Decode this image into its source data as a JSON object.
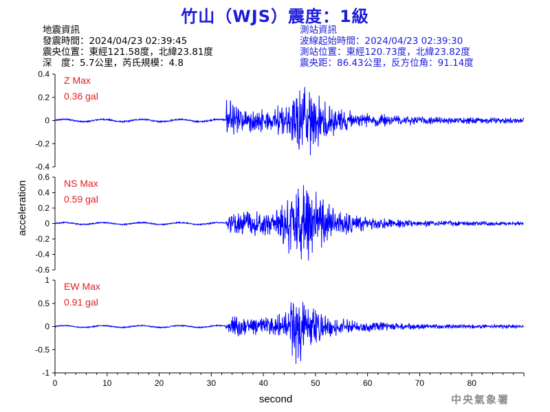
{
  "title": "竹山（WJS）震度：1級",
  "event_info": {
    "header": "地震資訊",
    "time": "發震時間：2024/04/23 02:39:45",
    "location": "震央位置：東經121.58度，北緯23.81度",
    "depth_magnitude": "深　度：5.7公里，芮氏規模：4.8"
  },
  "station_info": {
    "header": "測站資訊",
    "wave_start": "波線起始時間：2024/04/23 02:39:30",
    "location": "測站位置：東經120.73度，北緯23.82度",
    "distance": "震央距：86.43公里，反方位角：91.14度"
  },
  "watermark": "中央氣象署",
  "colors": {
    "title": "#1a1adb",
    "station_info": "#1a1adb",
    "trace": "#0000ff",
    "max_label": "#e31b1b",
    "watermark": "#8a8a8a"
  },
  "chart_data": {
    "type": "line",
    "xlabel": "second",
    "ylabel": "acceleration",
    "xlim": [
      0,
      90
    ],
    "xticks": [
      0,
      10,
      20,
      30,
      40,
      50,
      60,
      70,
      80
    ],
    "panels": [
      {
        "name": "Z",
        "max_label": "Z Max",
        "max_value": "0.36 gal",
        "ylim": [
          -0.4,
          0.4
        ],
        "yticks": [
          -0.4,
          -0.2,
          0,
          0.2,
          0.4
        ],
        "ytick_labels": [
          "-0.4",
          "-0.2",
          "0",
          "0.2",
          "0.4"
        ],
        "noise_amp": 0.01,
        "onset": 32.8,
        "envelope": [
          [
            32.5,
            0.01
          ],
          [
            33,
            0.2
          ],
          [
            35,
            0.12
          ],
          [
            38,
            0.1
          ],
          [
            41,
            0.12
          ],
          [
            43,
            0.15
          ],
          [
            45,
            0.19
          ],
          [
            47,
            0.28
          ],
          [
            49,
            0.3
          ],
          [
            51,
            0.2
          ],
          [
            54,
            0.12
          ],
          [
            58,
            0.07
          ],
          [
            65,
            0.05
          ],
          [
            75,
            0.03
          ],
          [
            90,
            0.025
          ]
        ]
      },
      {
        "name": "NS",
        "max_label": "NS Max",
        "max_value": "0.59 gal",
        "ylim": [
          -0.6,
          0.6
        ],
        "yticks": [
          -0.6,
          -0.4,
          -0.2,
          0,
          0.2,
          0.4,
          0.6
        ],
        "ytick_labels": [
          "-0.6",
          "-0.4",
          "-0.2",
          "0",
          "0.2",
          "0.4",
          "0.6"
        ],
        "noise_amp": 0.012,
        "onset": 32.8,
        "envelope": [
          [
            32.5,
            0.012
          ],
          [
            34,
            0.15
          ],
          [
            37,
            0.17
          ],
          [
            40,
            0.15
          ],
          [
            43,
            0.22
          ],
          [
            45,
            0.4
          ],
          [
            47,
            0.5
          ],
          [
            48.5,
            0.58
          ],
          [
            50,
            0.45
          ],
          [
            52,
            0.3
          ],
          [
            55,
            0.18
          ],
          [
            60,
            0.08
          ],
          [
            70,
            0.04
          ],
          [
            90,
            0.025
          ]
        ]
      },
      {
        "name": "EW",
        "max_label": "EW Max",
        "max_value": "0.91 gal",
        "ylim": [
          -1,
          1
        ],
        "yticks": [
          -1,
          -0.5,
          0,
          0.5,
          1
        ],
        "ytick_labels": [
          "-1",
          "-0.5",
          "0",
          "0.5",
          "1"
        ],
        "noise_amp": 0.02,
        "onset": 32.8,
        "envelope": [
          [
            32.5,
            0.02
          ],
          [
            34,
            0.22
          ],
          [
            37,
            0.2
          ],
          [
            40,
            0.18
          ],
          [
            44,
            0.3
          ],
          [
            45.5,
            0.7
          ],
          [
            46.5,
            0.9
          ],
          [
            48,
            0.55
          ],
          [
            50,
            0.35
          ],
          [
            53,
            0.22
          ],
          [
            58,
            0.12
          ],
          [
            65,
            0.08
          ],
          [
            75,
            0.05
          ],
          [
            90,
            0.04
          ]
        ]
      }
    ]
  }
}
